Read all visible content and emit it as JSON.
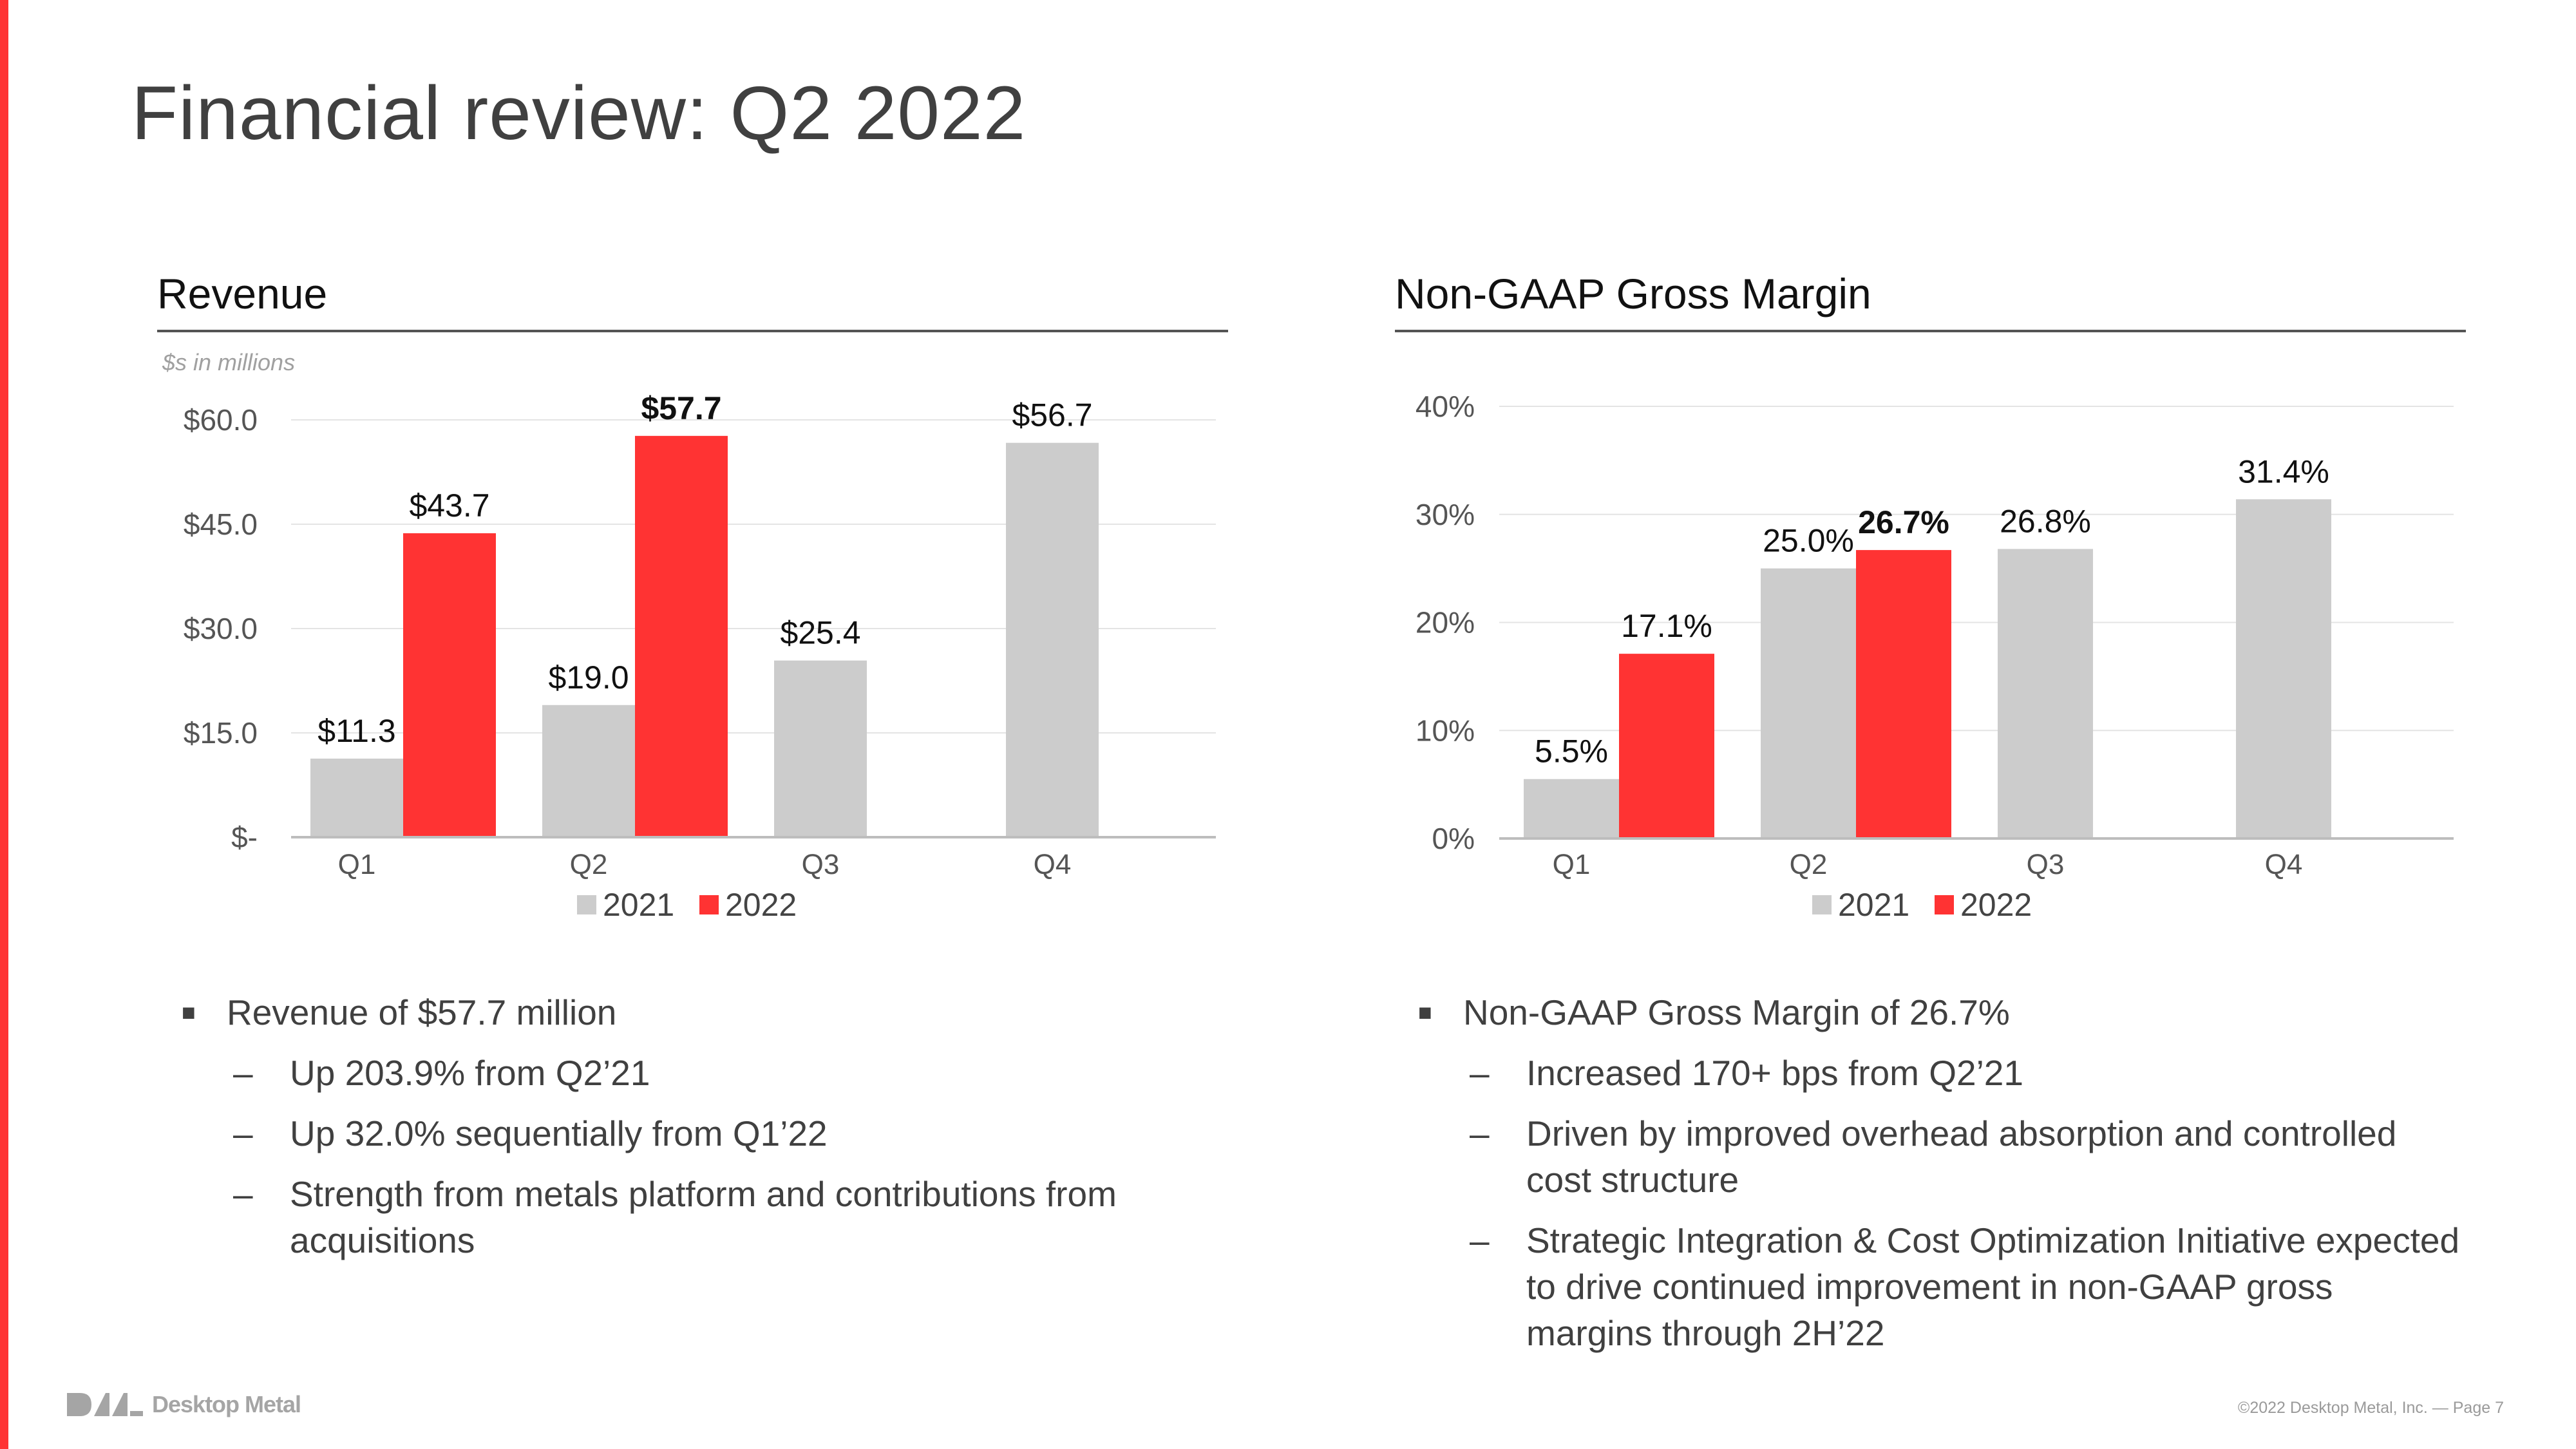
{
  "slide_title": "Financial review: Q2 2022",
  "colors": {
    "accent": "#ff3333",
    "series_2021": "#cccccc",
    "series_2022": "#ff3333"
  },
  "revenue_panel": {
    "title": "Revenue",
    "units_note": "$s in millions",
    "bullets": [
      {
        "text": "Revenue of $57.7 million",
        "subs": [
          "Up 203.9% from Q2’21",
          "Up 32.0% sequentially from Q1’22",
          "Strength from metals platform and contributions from acquisitions"
        ]
      }
    ]
  },
  "margin_panel": {
    "title": "Non-GAAP Gross Margin",
    "bullets": [
      {
        "text": "Non-GAAP Gross Margin of 26.7%",
        "subs": [
          "Increased 170+ bps from Q2’21",
          "Driven by improved overhead absorption and controlled cost structure",
          "Strategic Integration & Cost Optimization Initiative expected to drive continued improvement in non-GAAP gross margins through 2H’22"
        ]
      }
    ]
  },
  "chart_data": [
    {
      "type": "bar",
      "title": "Revenue",
      "categories": [
        "Q1",
        "Q2",
        "Q3",
        "Q4"
      ],
      "series": [
        {
          "name": "2021",
          "values": [
            11.3,
            19.0,
            25.4,
            56.7
          ],
          "labels": [
            "$11.3",
            "$19.0",
            "$25.4",
            "$56.7"
          ],
          "color": "#cccccc"
        },
        {
          "name": "2022",
          "values": [
            43.7,
            57.7,
            null,
            null
          ],
          "labels": [
            "$43.7",
            "$57.7",
            null,
            null
          ],
          "color": "#ff3333"
        }
      ],
      "highlight_label": "$57.7",
      "yticks": [
        0,
        15,
        30,
        45,
        60
      ],
      "ytick_labels": [
        "$-",
        "$15.0",
        "$30.0",
        "$45.0",
        "$60.0"
      ],
      "ylim": [
        0,
        60
      ],
      "grid": true,
      "legend": "bottom"
    },
    {
      "type": "bar",
      "title": "Non-GAAP Gross Margin",
      "categories": [
        "Q1",
        "Q2",
        "Q3",
        "Q4"
      ],
      "series": [
        {
          "name": "2021",
          "values": [
            5.5,
            25.0,
            26.8,
            31.4
          ],
          "labels": [
            "5.5%",
            "25.0%",
            "26.8%",
            "31.4%"
          ],
          "color": "#cccccc"
        },
        {
          "name": "2022",
          "values": [
            17.1,
            26.7,
            null,
            null
          ],
          "labels": [
            "17.1%",
            "26.7%",
            null,
            null
          ],
          "color": "#ff3333"
        }
      ],
      "highlight_label": "26.7%",
      "yticks": [
        0,
        10,
        20,
        30,
        40
      ],
      "ytick_labels": [
        "0%",
        "10%",
        "20%",
        "30%",
        "40%"
      ],
      "ylim": [
        0,
        40
      ],
      "grid": true,
      "legend": "bottom"
    }
  ],
  "logo_text": "Desktop Metal",
  "footer": "©2022 Desktop Metal, Inc. — Page 7"
}
